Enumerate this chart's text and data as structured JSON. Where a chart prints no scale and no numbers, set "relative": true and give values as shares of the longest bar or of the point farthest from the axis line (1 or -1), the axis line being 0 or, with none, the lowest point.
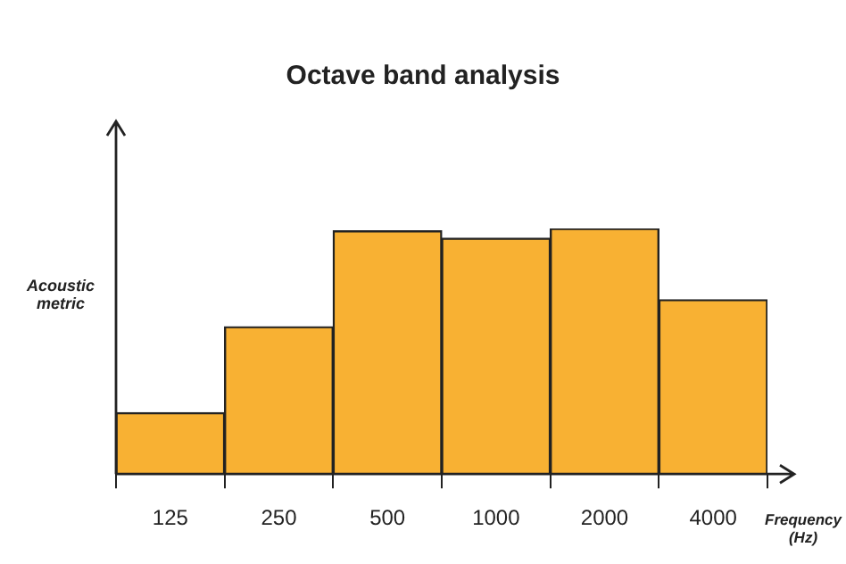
{
  "chart_data": {
    "type": "bar",
    "title": "Octave band analysis",
    "xlabel": "Frequency (Hz)",
    "ylabel": "Acoustic metric",
    "categories": [
      "125",
      "250",
      "500",
      "1000",
      "2000",
      "4000"
    ],
    "values": [
      0.25,
      0.6,
      0.99,
      0.96,
      1,
      0.71
    ],
    "color": "#f8b133",
    "relative": true,
    "grid": false,
    "legend": false
  }
}
